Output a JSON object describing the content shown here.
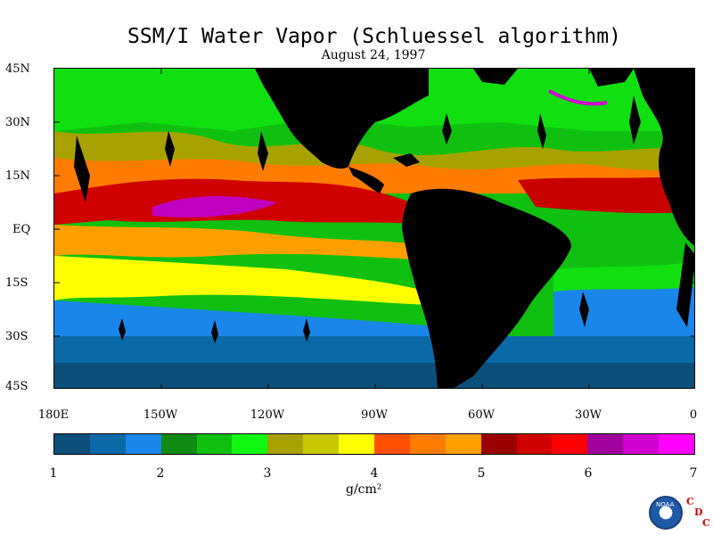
{
  "title": "SSM/I Water Vapor (Schluessel algorithm)",
  "date": "August 24, 1997",
  "map": {
    "projection": "equirectangular",
    "lon_range": [
      180,
      360
    ],
    "lat_range": [
      -45,
      45
    ],
    "lat_labels": [
      "45N",
      "30N",
      "15N",
      "EQ",
      "15S",
      "30S",
      "45S"
    ],
    "lon_labels": [
      "180E",
      "150W",
      "120W",
      "90W",
      "60W",
      "30W",
      "0"
    ]
  },
  "colorbar": {
    "colors": [
      "#0b4f7a",
      "#0a6aa8",
      "#1a86ea",
      "#108a10",
      "#10c010",
      "#10f810",
      "#a8a200",
      "#c8c800",
      "#ffff00",
      "#ff5000",
      "#ff7c00",
      "#ffa000",
      "#9b0000",
      "#d00000",
      "#ff0000",
      "#a0009c",
      "#d000d0",
      "#ff00ff"
    ],
    "tick_labels": [
      "1",
      "2",
      "3",
      "4",
      "5",
      "6",
      "7"
    ],
    "units": "g/cm²",
    "range": [
      1,
      7
    ]
  },
  "logo": {
    "noaa_text": "NOAA",
    "cdc_letters": [
      "C",
      "D",
      "C"
    ]
  }
}
